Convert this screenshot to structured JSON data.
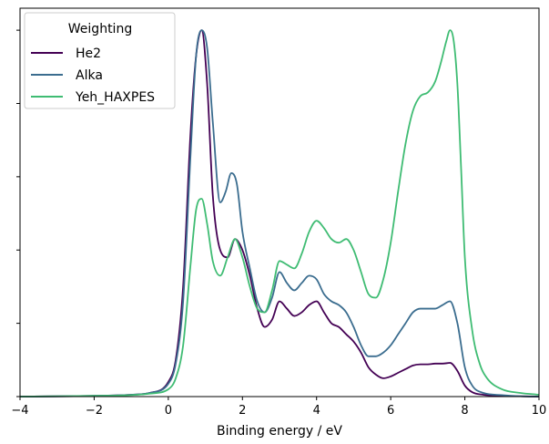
{
  "chart_data": {
    "type": "line",
    "title": "",
    "xlabel": "Binding energy / eV",
    "ylabel": "",
    "xlim": [
      -4,
      10
    ],
    "ylim": [
      0,
      1.06
    ],
    "xticks": [
      -4,
      -2,
      0,
      2,
      4,
      6,
      8,
      10
    ],
    "xtick_labels": [
      "−4",
      "−2",
      "0",
      "2",
      "4",
      "6",
      "8",
      "10"
    ],
    "yticks": [
      0,
      0.2,
      0.4,
      0.6,
      0.8,
      1.0
    ],
    "ytick_labels_visible": false,
    "grid": false,
    "legend": {
      "title": "Weighting",
      "placement": "top-left"
    },
    "series": [
      {
        "name": "He2",
        "color": "#440154",
        "x": [
          -4,
          -2,
          -1,
          -0.5,
          0,
          0.2,
          0.4,
          0.6,
          0.75,
          0.9,
          1.05,
          1.2,
          1.4,
          1.6,
          1.8,
          2.0,
          2.2,
          2.4,
          2.6,
          2.8,
          3.0,
          3.2,
          3.4,
          3.6,
          3.8,
          4.0,
          4.2,
          4.4,
          4.6,
          4.8,
          5.0,
          5.2,
          5.4,
          5.6,
          5.8,
          6.0,
          6.2,
          6.4,
          6.6,
          6.8,
          7.0,
          7.2,
          7.4,
          7.6,
          7.8,
          8.0,
          8.2,
          8.5,
          9.0,
          9.5,
          10
        ],
        "y": [
          0.0,
          0.002,
          0.005,
          0.01,
          0.04,
          0.1,
          0.3,
          0.72,
          0.93,
          1.0,
          0.85,
          0.55,
          0.4,
          0.38,
          0.43,
          0.4,
          0.33,
          0.24,
          0.19,
          0.21,
          0.26,
          0.24,
          0.22,
          0.23,
          0.25,
          0.26,
          0.23,
          0.2,
          0.19,
          0.17,
          0.15,
          0.12,
          0.08,
          0.06,
          0.05,
          0.055,
          0.065,
          0.075,
          0.085,
          0.088,
          0.088,
          0.09,
          0.09,
          0.092,
          0.07,
          0.03,
          0.012,
          0.005,
          0.002,
          0.001,
          0.0
        ]
      },
      {
        "name": "Alka",
        "color": "#3b6d8f",
        "x": [
          -4,
          -2,
          -1,
          -0.5,
          0,
          0.2,
          0.4,
          0.6,
          0.75,
          0.9,
          1.05,
          1.2,
          1.4,
          1.55,
          1.7,
          1.85,
          2.0,
          2.2,
          2.4,
          2.6,
          2.8,
          3.0,
          3.2,
          3.4,
          3.6,
          3.8,
          4.0,
          4.2,
          4.4,
          4.6,
          4.8,
          5.0,
          5.2,
          5.4,
          5.6,
          5.8,
          6.0,
          6.2,
          6.4,
          6.6,
          6.8,
          7.0,
          7.2,
          7.4,
          7.6,
          7.8,
          8.0,
          8.2,
          8.5,
          9.0,
          9.5,
          10
        ],
        "y": [
          0.0,
          0.002,
          0.005,
          0.01,
          0.035,
          0.09,
          0.26,
          0.66,
          0.93,
          1.0,
          0.95,
          0.75,
          0.53,
          0.56,
          0.61,
          0.58,
          0.45,
          0.35,
          0.26,
          0.23,
          0.27,
          0.34,
          0.31,
          0.29,
          0.31,
          0.33,
          0.32,
          0.28,
          0.26,
          0.25,
          0.23,
          0.19,
          0.14,
          0.11,
          0.11,
          0.12,
          0.14,
          0.17,
          0.2,
          0.23,
          0.24,
          0.24,
          0.24,
          0.25,
          0.26,
          0.2,
          0.08,
          0.03,
          0.01,
          0.004,
          0.001,
          0.0
        ]
      },
      {
        "name": "Yeh_HAXPES",
        "color": "#3fbc73",
        "x": [
          -4,
          -2,
          -1,
          -0.5,
          0,
          0.2,
          0.4,
          0.6,
          0.75,
          0.9,
          1.05,
          1.2,
          1.4,
          1.6,
          1.8,
          2.0,
          2.2,
          2.4,
          2.6,
          2.8,
          3.0,
          3.2,
          3.4,
          3.6,
          3.8,
          4.0,
          4.2,
          4.4,
          4.6,
          4.8,
          5.0,
          5.2,
          5.4,
          5.6,
          5.8,
          6.0,
          6.2,
          6.4,
          6.6,
          6.8,
          7.0,
          7.2,
          7.35,
          7.5,
          7.6,
          7.7,
          7.8,
          7.9,
          8.0,
          8.2,
          8.4,
          8.6,
          9.0,
          9.5,
          10
        ],
        "y": [
          0.0,
          0.002,
          0.004,
          0.008,
          0.02,
          0.05,
          0.14,
          0.36,
          0.51,
          0.54,
          0.47,
          0.37,
          0.33,
          0.38,
          0.43,
          0.38,
          0.3,
          0.24,
          0.23,
          0.29,
          0.37,
          0.36,
          0.35,
          0.39,
          0.45,
          0.48,
          0.46,
          0.43,
          0.42,
          0.43,
          0.4,
          0.34,
          0.28,
          0.27,
          0.32,
          0.42,
          0.56,
          0.69,
          0.78,
          0.82,
          0.83,
          0.86,
          0.91,
          0.97,
          1.0,
          0.97,
          0.85,
          0.62,
          0.38,
          0.18,
          0.09,
          0.05,
          0.02,
          0.01,
          0.005
        ]
      }
    ]
  }
}
